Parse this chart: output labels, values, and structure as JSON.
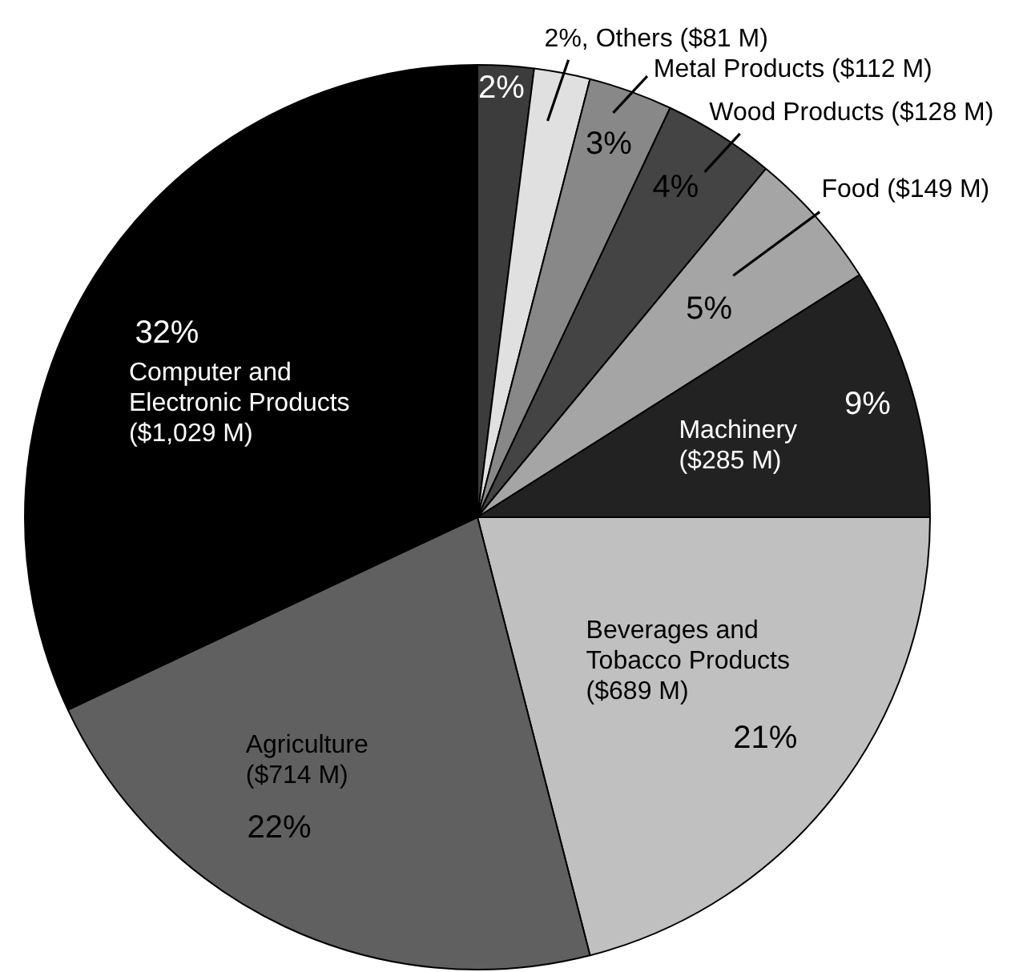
{
  "chart_data": {
    "type": "pie",
    "categories": [
      null,
      "Others ($81 M)",
      "Metal Products ($112 M)",
      "Wood Products ($128 M)",
      "Food ($149 M)",
      "Machinery ($285 M)",
      "Beverages and Tobacco Products ($689 M)",
      "Agriculture ($714 M)",
      "Computer and Electronic Products ($1,029 M)"
    ],
    "values": [
      2,
      2,
      3,
      4,
      5,
      9,
      21,
      22,
      32
    ],
    "value_labels": [
      "2%",
      "2%",
      "3%",
      "4%",
      "5%",
      "9%",
      "21%",
      "22%",
      "32%"
    ],
    "colors": [
      "#3c3c3c",
      "#e0e0e0",
      "#888888",
      "#444444",
      "#a5a5a5",
      "#222222",
      "#c0c0c0",
      "#606060",
      "#000000"
    ]
  }
}
